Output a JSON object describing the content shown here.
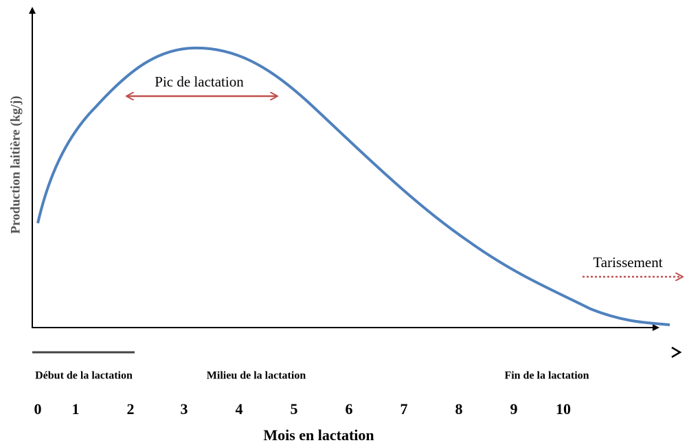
{
  "y_axis_label": "Production laitière  (kg/j)",
  "x_axis_label": "Mois en lactation",
  "annotations": {
    "peak": "Pic de lactation",
    "drying_off": "Tarissement"
  },
  "phases": [
    "Début de la lactation",
    "Milieu de la lactation",
    "Fin de la lactation"
  ],
  "months": [
    0,
    1,
    2,
    3,
    4,
    5,
    6,
    7,
    8,
    9,
    10
  ]
}
